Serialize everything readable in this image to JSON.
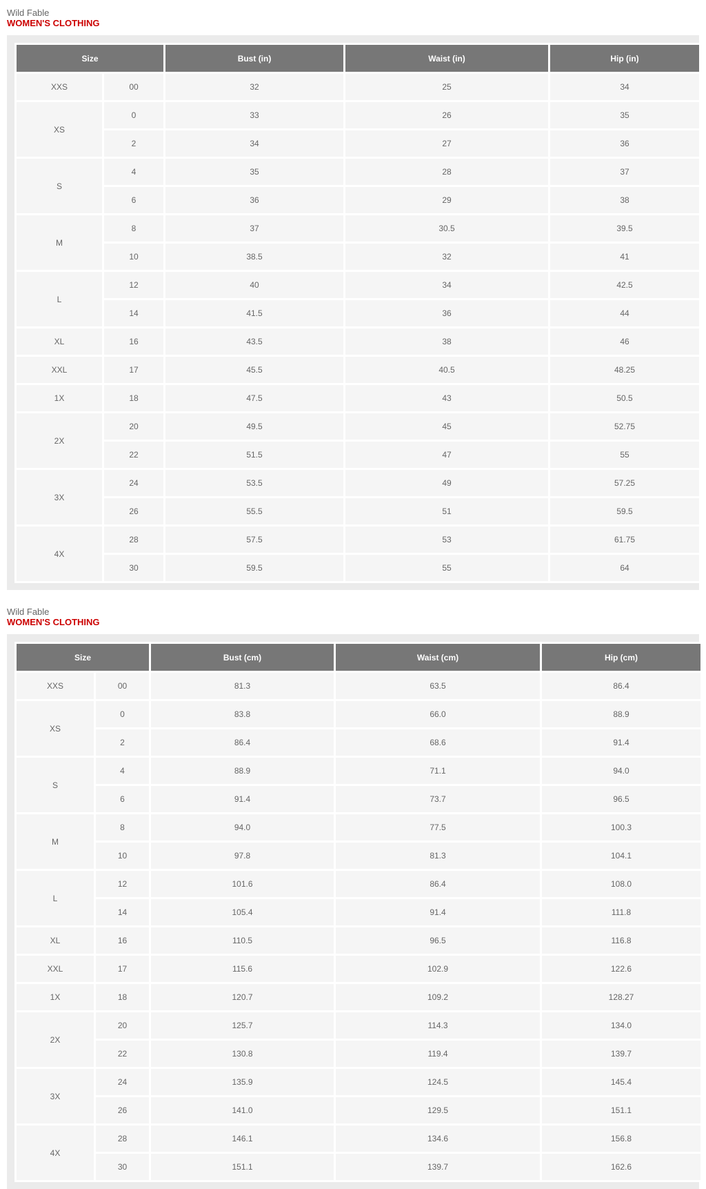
{
  "sections": [
    {
      "brand": "Wild Fable",
      "heading": "WOMEN'S CLOTHING",
      "headers": {
        "size": "Size",
        "bust": "Bust (in)",
        "waist": "Waist (in)",
        "hip": "Hip (in)"
      },
      "groups": [
        {
          "label": "XXS",
          "rows": [
            [
              "00",
              "32",
              "25",
              "34"
            ]
          ]
        },
        {
          "label": "XS",
          "rows": [
            [
              "0",
              "33",
              "26",
              "35"
            ],
            [
              "2",
              "34",
              "27",
              "36"
            ]
          ]
        },
        {
          "label": "S",
          "rows": [
            [
              "4",
              "35",
              "28",
              "37"
            ],
            [
              "6",
              "36",
              "29",
              "38"
            ]
          ]
        },
        {
          "label": "M",
          "rows": [
            [
              "8",
              "37",
              "30.5",
              "39.5"
            ],
            [
              "10",
              "38.5",
              "32",
              "41"
            ]
          ]
        },
        {
          "label": "L",
          "rows": [
            [
              "12",
              "40",
              "34",
              "42.5"
            ],
            [
              "14",
              "41.5",
              "36",
              "44"
            ]
          ]
        },
        {
          "label": "XL",
          "rows": [
            [
              "16",
              "43.5",
              "38",
              "46"
            ]
          ]
        },
        {
          "label": "XXL",
          "rows": [
            [
              "17",
              "45.5",
              "40.5",
              "48.25"
            ]
          ]
        },
        {
          "label": "1X",
          "rows": [
            [
              "18",
              "47.5",
              "43",
              "50.5"
            ]
          ]
        },
        {
          "label": "2X",
          "rows": [
            [
              "20",
              "49.5",
              "45",
              "52.75"
            ],
            [
              "22",
              "51.5",
              "47",
              "55"
            ]
          ]
        },
        {
          "label": "3X",
          "rows": [
            [
              "24",
              "53.5",
              "49",
              "57.25"
            ],
            [
              "26",
              "55.5",
              "51",
              "59.5"
            ]
          ]
        },
        {
          "label": "4X",
          "rows": [
            [
              "28",
              "57.5",
              "53",
              "61.75"
            ],
            [
              "30",
              "59.5",
              "55",
              "64"
            ]
          ]
        }
      ]
    },
    {
      "brand": "Wild Fable",
      "heading": "WOMEN'S CLOTHING",
      "headers": {
        "size": "Size",
        "bust": "Bust (cm)",
        "waist": "Waist (cm)",
        "hip": "Hip (cm)"
      },
      "groups": [
        {
          "label": "XXS",
          "rows": [
            [
              "00",
              "81.3",
              "63.5",
              "86.4"
            ]
          ]
        },
        {
          "label": "XS",
          "rows": [
            [
              "0",
              "83.8",
              "66.0",
              "88.9"
            ],
            [
              "2",
              "86.4",
              "68.6",
              "91.4"
            ]
          ]
        },
        {
          "label": "S",
          "rows": [
            [
              "4",
              "88.9",
              "71.1",
              "94.0"
            ],
            [
              "6",
              "91.4",
              "73.7",
              "96.5"
            ]
          ]
        },
        {
          "label": "M",
          "rows": [
            [
              "8",
              "94.0",
              "77.5",
              "100.3"
            ],
            [
              "10",
              "97.8",
              "81.3",
              "104.1"
            ]
          ]
        },
        {
          "label": "L",
          "rows": [
            [
              "12",
              "101.6",
              "86.4",
              "108.0"
            ],
            [
              "14",
              "105.4",
              "91.4",
              "111.8"
            ]
          ]
        },
        {
          "label": "XL",
          "rows": [
            [
              "16",
              "110.5",
              "96.5",
              "116.8"
            ]
          ]
        },
        {
          "label": "XXL",
          "rows": [
            [
              "17",
              "115.6",
              "102.9",
              "122.6"
            ]
          ]
        },
        {
          "label": "1X",
          "rows": [
            [
              "18",
              "120.7",
              "109.2",
              "128.27"
            ]
          ]
        },
        {
          "label": "2X",
          "rows": [
            [
              "20",
              "125.7",
              "114.3",
              "134.0"
            ],
            [
              "22",
              "130.8",
              "119.4",
              "139.7"
            ]
          ]
        },
        {
          "label": "3X",
          "rows": [
            [
              "24",
              "135.9",
              "124.5",
              "145.4"
            ],
            [
              "26",
              "141.0",
              "129.5",
              "151.1"
            ]
          ]
        },
        {
          "label": "4X",
          "rows": [
            [
              "28",
              "146.1",
              "134.6",
              "156.8"
            ],
            [
              "30",
              "151.1",
              "139.7",
              "162.6"
            ]
          ]
        }
      ]
    }
  ],
  "colors": {
    "header_bg": "#777777",
    "heading": "#cc0000",
    "cell_bg": "#f5f5f5",
    "panel_bg": "#ebebeb"
  }
}
